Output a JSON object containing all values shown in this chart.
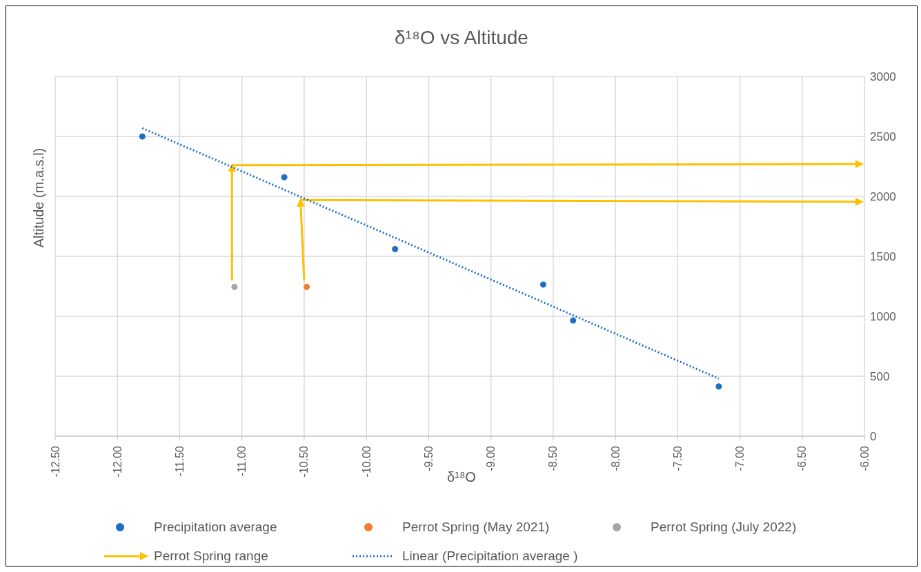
{
  "chart_data": {
    "type": "scatter",
    "title": "δ¹⁸O vs Altitude",
    "xlabel": "δ¹⁸O",
    "ylabel": "Altitude (m.a.s.l)",
    "xlim": [
      -12.5,
      -6
    ],
    "xticks": [
      {
        "value": -12.5,
        "label": "-12.50"
      },
      {
        "value": -12,
        "label": "-12.00"
      },
      {
        "value": -11.5,
        "label": "-11.50"
      },
      {
        "value": -11,
        "label": "-11.00"
      },
      {
        "value": -10.5,
        "label": "-10.50"
      },
      {
        "value": -10,
        "label": "-10.00"
      },
      {
        "value": -9.5,
        "label": "-9.50"
      },
      {
        "value": -9,
        "label": "-9.00"
      },
      {
        "value": -8.5,
        "label": "-8.50"
      },
      {
        "value": -8,
        "label": "-8.00"
      },
      {
        "value": -7.5,
        "label": "-7.50"
      },
      {
        "value": -7,
        "label": "-7.00"
      },
      {
        "value": -6.5,
        "label": "-6.50"
      },
      {
        "value": -6,
        "label": "-6.00"
      }
    ],
    "ylim": [
      0,
      3000
    ],
    "yticks": [
      0,
      500,
      1000,
      1500,
      2000,
      2500,
      3000
    ],
    "grid": true,
    "legend": "bottom",
    "series": [
      {
        "name": "Precipitation average",
        "color": "#1f6fc5",
        "marker": "circle",
        "x": [
          -11.8,
          -10.66,
          -9.77,
          -8.58,
          -8.34,
          -7.17
        ],
        "values": [
          2500,
          2160,
          1560,
          1265,
          965,
          415
        ]
      },
      {
        "name": "Perrot Spring (May 2021)",
        "color": "#f47c30",
        "marker": "circle",
        "x": [
          -10.48
        ],
        "values": [
          1245
        ]
      },
      {
        "name": "Perrot Spring (July 2022)",
        "color": "#a5a5a5",
        "marker": "circle",
        "x": [
          -11.06
        ],
        "values": [
          1245
        ]
      },
      {
        "name": "Perrot Spring range",
        "type": "line",
        "color": "#ffc000",
        "x": [
          -11.08,
          -11.08,
          -6.02,
          null,
          -10.5,
          -10.53,
          -6.02
        ],
        "values": [
          1300,
          2260,
          2270,
          null,
          1300,
          1970,
          1955
        ]
      },
      {
        "name": "Linear (Precipitation average )",
        "type": "line",
        "color": "#1f6fc5",
        "line_style": "dotted",
        "x": [
          -11.8,
          -7.17
        ],
        "values": [
          2570,
          481
        ]
      }
    ]
  }
}
